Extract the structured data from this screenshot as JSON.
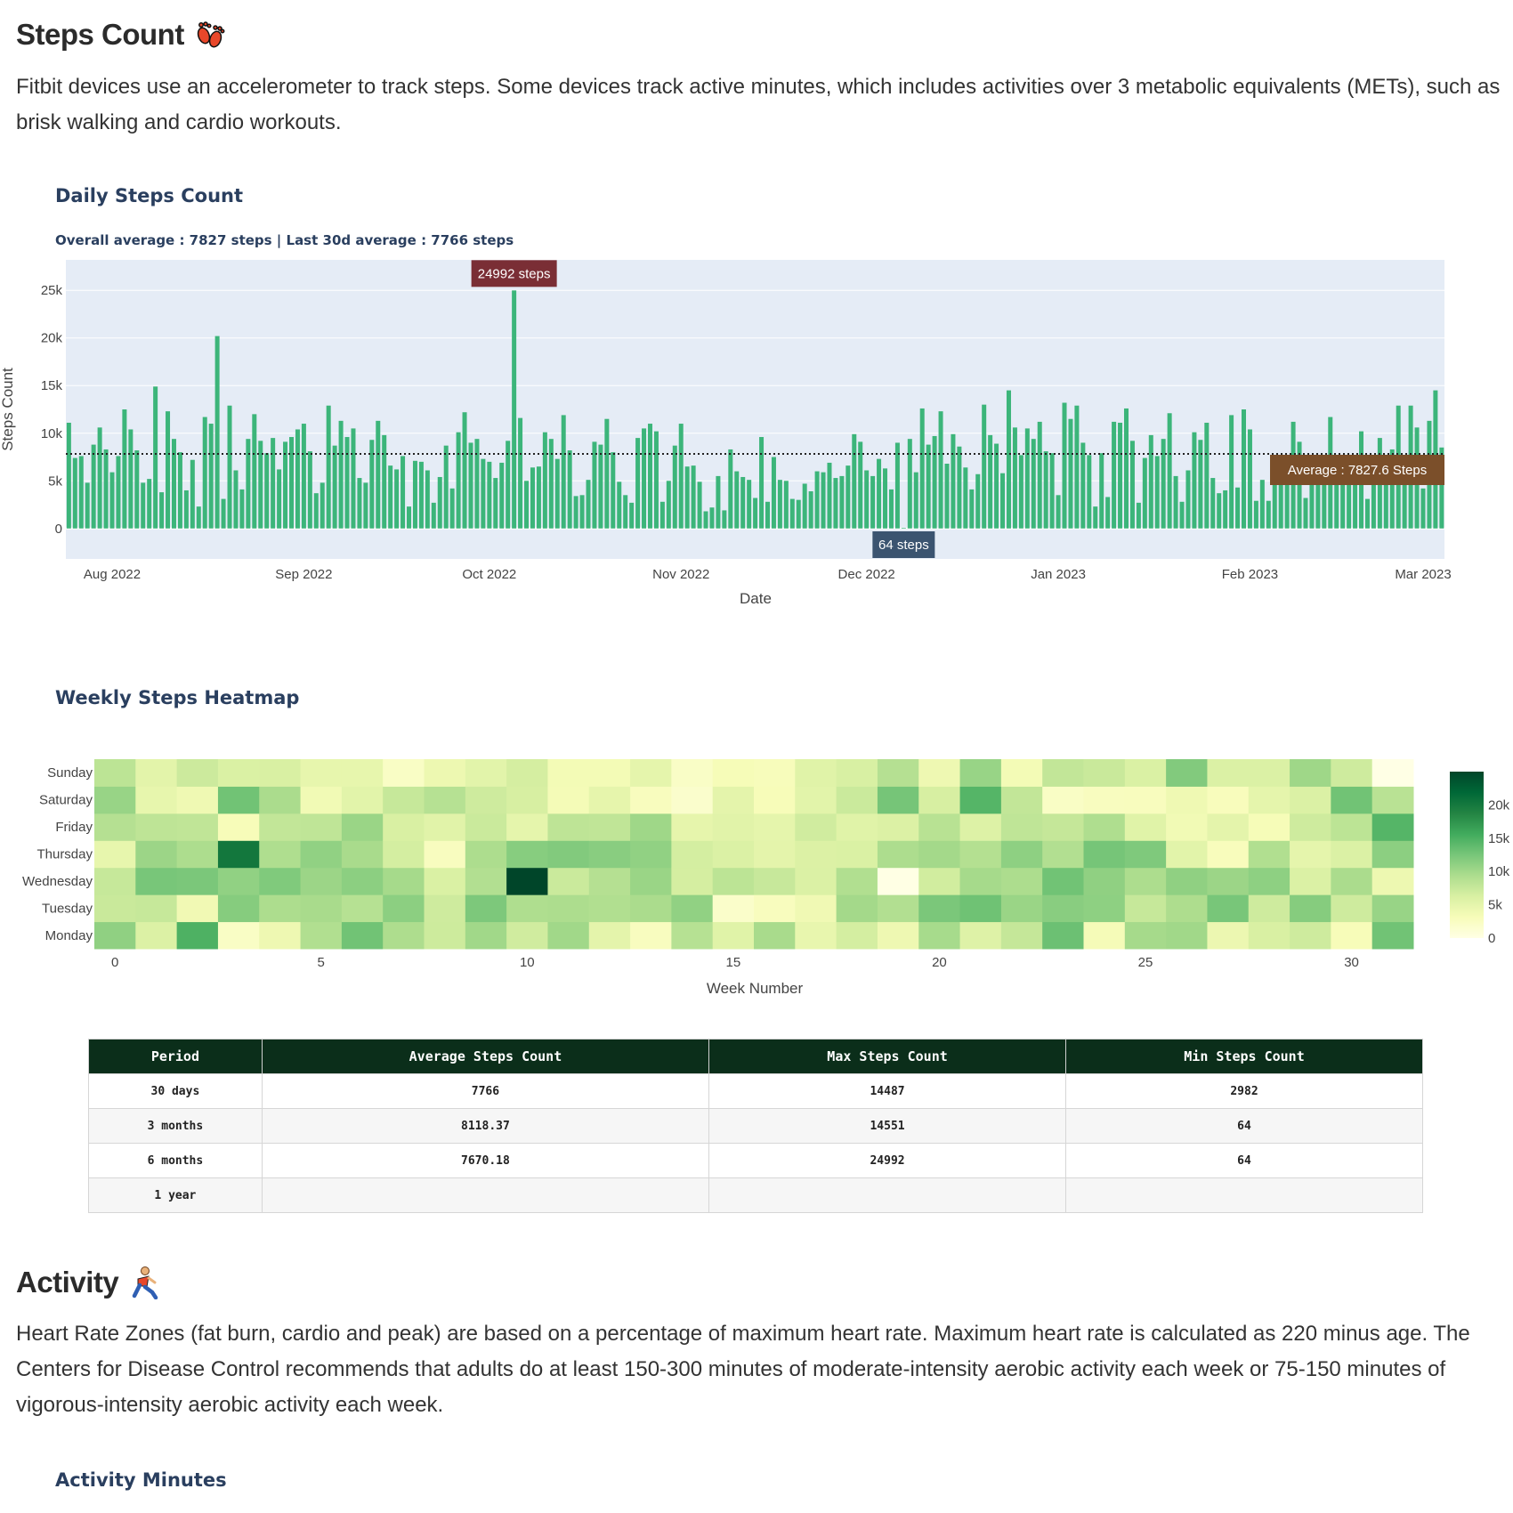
{
  "steps_section": {
    "title": "Steps Count",
    "icon": "footprints-icon",
    "description": "Fitbit devices use an accelerometer to track steps. Some devices track active minutes, which includes activities over 3 metabolic equivalents (METs), such as brisk walking and cardio workouts."
  },
  "activity_section": {
    "title": "Activity",
    "icon": "runner-icon",
    "description": "Heart Rate Zones (fat burn, cardio and peak) are based on a percentage of maximum heart rate. Maximum heart rate is calculated as 220 minus age. The Centers for Disease Control recommends that adults do at least 150-300 minutes of moderate-intensity aerobic activity each week or 75-150 minutes of vigorous-intensity aerobic activity each week.",
    "next_chart_title": "Activity Minutes"
  },
  "colors": {
    "bar": "#3cb57a",
    "plot_bg": "#e5ecf6",
    "max_label": "#7a2e35",
    "min_label": "#3b5470",
    "avg_label": "#7b4f2a",
    "table_header": "#0b2e1a"
  },
  "chart_data": [
    {
      "type": "bar",
      "title": "Daily Steps Count",
      "subtitle": "Overall average : 7827 steps | Last 30d average : 7766 steps",
      "xlabel": "Date",
      "ylabel": "Steps Count",
      "ylim": [
        -3200,
        28200
      ],
      "y_ticks": [
        0,
        5000,
        10000,
        15000,
        20000,
        25000
      ],
      "y_tick_labels": [
        "0",
        "5k",
        "10k",
        "15k",
        "20k",
        "25k"
      ],
      "x_ticks": [
        "2022-08-01",
        "2022-09-01",
        "2022-10-01",
        "2022-11-01",
        "2022-12-01",
        "2023-01-01",
        "2023-02-01",
        "2023-03-01"
      ],
      "x_tick_labels": [
        "Aug 2022",
        "Sep 2022",
        "Oct 2022",
        "Nov 2022",
        "Dec 2022",
        "Jan 2023",
        "Feb 2023",
        "Mar 2023"
      ],
      "grid": true,
      "average_line": 7827.6,
      "annotations": {
        "max": "24992 steps",
        "min": "64 steps",
        "average": "Average : 7827.6 Steps"
      },
      "x": [
        "2022-07-25",
        "2022-07-26",
        "2022-07-27",
        "2022-07-28",
        "2022-07-29",
        "2022-07-30",
        "2022-07-31",
        "2022-08-01",
        "2022-08-02",
        "2022-08-03",
        "2022-08-04",
        "2022-08-05",
        "2022-08-06",
        "2022-08-07",
        "2022-08-08",
        "2022-08-09",
        "2022-08-10",
        "2022-08-11",
        "2022-08-12",
        "2022-08-13",
        "2022-08-14",
        "2022-08-15",
        "2022-08-16",
        "2022-08-17",
        "2022-08-18",
        "2022-08-19",
        "2022-08-20",
        "2022-08-21",
        "2022-08-22",
        "2022-08-23",
        "2022-08-24",
        "2022-08-25",
        "2022-08-26",
        "2022-08-27",
        "2022-08-28",
        "2022-08-29",
        "2022-08-30",
        "2022-08-31",
        "2022-09-01",
        "2022-09-02",
        "2022-09-03",
        "2022-09-04",
        "2022-09-05",
        "2022-09-06",
        "2022-09-07",
        "2022-09-08",
        "2022-09-09",
        "2022-09-10",
        "2022-09-11",
        "2022-09-12",
        "2022-09-13",
        "2022-09-14",
        "2022-09-15",
        "2022-09-16",
        "2022-09-17",
        "2022-09-18",
        "2022-09-19",
        "2022-09-20",
        "2022-09-21",
        "2022-09-22",
        "2022-09-23",
        "2022-09-24",
        "2022-09-25",
        "2022-09-26",
        "2022-09-27",
        "2022-09-28",
        "2022-09-29",
        "2022-09-30",
        "2022-10-01",
        "2022-10-02",
        "2022-10-03",
        "2022-10-04",
        "2022-10-05",
        "2022-10-06",
        "2022-10-07",
        "2022-10-08",
        "2022-10-09",
        "2022-10-10",
        "2022-10-11",
        "2022-10-12",
        "2022-10-13",
        "2022-10-14",
        "2022-10-15",
        "2022-10-16",
        "2022-10-17",
        "2022-10-18",
        "2022-10-19",
        "2022-10-20",
        "2022-10-21",
        "2022-10-22",
        "2022-10-23",
        "2022-10-24",
        "2022-10-25",
        "2022-10-26",
        "2022-10-27",
        "2022-10-28",
        "2022-10-29",
        "2022-10-30",
        "2022-10-31",
        "2022-11-01",
        "2022-11-02",
        "2022-11-03",
        "2022-11-04",
        "2022-11-05",
        "2022-11-06",
        "2022-11-07",
        "2022-11-08",
        "2022-11-09",
        "2022-11-10",
        "2022-11-11",
        "2022-11-12",
        "2022-11-13",
        "2022-11-14",
        "2022-11-15",
        "2022-11-16",
        "2022-11-17",
        "2022-11-18",
        "2022-11-19",
        "2022-11-20",
        "2022-11-21",
        "2022-11-22",
        "2022-11-23",
        "2022-11-24",
        "2022-11-25",
        "2022-11-26",
        "2022-11-27",
        "2022-11-28",
        "2022-11-29",
        "2022-11-30",
        "2022-12-01",
        "2022-12-02",
        "2022-12-03",
        "2022-12-04",
        "2022-12-05",
        "2022-12-06",
        "2022-12-07",
        "2022-12-08",
        "2022-12-09",
        "2022-12-10",
        "2022-12-11",
        "2022-12-12",
        "2022-12-13",
        "2022-12-14",
        "2022-12-15",
        "2022-12-16",
        "2022-12-17",
        "2022-12-18",
        "2022-12-19",
        "2022-12-20",
        "2022-12-21",
        "2022-12-22",
        "2022-12-23",
        "2022-12-24",
        "2022-12-25",
        "2022-12-26",
        "2022-12-27",
        "2022-12-28",
        "2022-12-29",
        "2022-12-30",
        "2022-12-31",
        "2023-01-01",
        "2023-01-02",
        "2023-01-03",
        "2023-01-04",
        "2023-01-05",
        "2023-01-06",
        "2023-01-07",
        "2023-01-08",
        "2023-01-09",
        "2023-01-10",
        "2023-01-11",
        "2023-01-12",
        "2023-01-13",
        "2023-01-14",
        "2023-01-15",
        "2023-01-16",
        "2023-01-17",
        "2023-01-18",
        "2023-01-19",
        "2023-01-20",
        "2023-01-21",
        "2023-01-22",
        "2023-01-23",
        "2023-01-24",
        "2023-01-25",
        "2023-01-26",
        "2023-01-27",
        "2023-01-28",
        "2023-01-29",
        "2023-01-30",
        "2023-01-31",
        "2023-02-01",
        "2023-02-02",
        "2023-02-03",
        "2023-02-04",
        "2023-02-05",
        "2023-02-06",
        "2023-02-07",
        "2023-02-08",
        "2023-02-09",
        "2023-02-10",
        "2023-02-11",
        "2023-02-12",
        "2023-02-13",
        "2023-02-14",
        "2023-02-15",
        "2023-02-16",
        "2023-02-17",
        "2023-02-18",
        "2023-02-19",
        "2023-02-20",
        "2023-02-21",
        "2023-02-22",
        "2023-02-23",
        "2023-02-24",
        "2023-02-25",
        "2023-02-26",
        "2023-02-27",
        "2023-02-28",
        "2023-03-01",
        "2023-03-02",
        "2023-03-03",
        "2023-03-04"
      ],
      "y": [
        11100,
        7400,
        7600,
        4800,
        8800,
        10600,
        8300,
        5900,
        7600,
        12500,
        10400,
        8200,
        4800,
        5200,
        14900,
        3800,
        12300,
        9400,
        8000,
        4000,
        7200,
        2300,
        11700,
        11000,
        20200,
        3100,
        12900,
        6100,
        4100,
        9400,
        12000,
        9200,
        7900,
        9500,
        6200,
        9100,
        9600,
        10400,
        11000,
        8100,
        3700,
        4800,
        12900,
        8700,
        11300,
        9600,
        10500,
        5300,
        4800,
        9300,
        11300,
        9800,
        6600,
        6200,
        7600,
        2300,
        7100,
        7000,
        6100,
        2700,
        5400,
        8700,
        4200,
        10100,
        12200,
        9000,
        9400,
        7300,
        7000,
        5300,
        6900,
        9200,
        24992,
        11600,
        5000,
        6400,
        6500,
        10100,
        9400,
        7300,
        11900,
        8200,
        3400,
        3500,
        5100,
        9100,
        8800,
        11500,
        8000,
        4900,
        3500,
        2700,
        9500,
        10500,
        11000,
        10200,
        2800,
        5000,
        8700,
        11000,
        6500,
        6600,
        4900,
        1800,
        2200,
        5500,
        1900,
        8300,
        6000,
        5400,
        5100,
        3200,
        9600,
        2800,
        7500,
        5100,
        5000,
        3100,
        3000,
        4700,
        3900,
        6000,
        5900,
        6900,
        5300,
        5500,
        6600,
        9900,
        9100,
        6100,
        5500,
        7300,
        6300,
        4100,
        9000,
        64,
        9400,
        5900,
        12600,
        8800,
        9700,
        12300,
        6800,
        9900,
        8600,
        6400,
        4100,
        5700,
        13000,
        9800,
        8900,
        5800,
        14500,
        10600,
        7700,
        10500,
        9400,
        11200,
        8100,
        7900,
        3500,
        13200,
        11500,
        12900,
        9000,
        7700,
        2300,
        7900,
        3300,
        11200,
        11100,
        12600,
        9200,
        2700,
        7400,
        9800,
        7600,
        9400,
        12100,
        5500,
        2800,
        6100,
        10100,
        9300,
        11100,
        5300,
        3700,
        4000,
        11900,
        4300,
        12500,
        10400,
        2900,
        5100,
        2900,
        6000,
        6200,
        7000,
        11200,
        9100,
        3200,
        5000,
        6000,
        7000,
        11700,
        6000,
        5000,
        7000,
        6000,
        10200,
        3100,
        7000,
        9500,
        6000,
        8300,
        12900,
        7000,
        12900,
        10600,
        4200,
        11300,
        14500,
        8500
      ]
    },
    {
      "type": "heatmap",
      "title": "Weekly Steps Heatmap",
      "xlabel": "Week Number",
      "ylabel": "",
      "y_categories": [
        "Monday",
        "Tuesday",
        "Wednesday",
        "Thursday",
        "Friday",
        "Saturday",
        "Sunday"
      ],
      "weeks": 32,
      "x_ticks": [
        0,
        5,
        10,
        15,
        20,
        25,
        30
      ],
      "x_tick_labels": [
        "0",
        "5",
        "10",
        "15",
        "20",
        "25",
        "30"
      ],
      "colorscale": [
        "#ffffe5",
        "#f7fcb9",
        "#d9f0a3",
        "#addd8e",
        "#78c679",
        "#41ab5d",
        "#238443",
        "#006837",
        "#004529"
      ],
      "zmin": 0,
      "zmax": 24992,
      "colorbar_ticks": [
        0,
        5000,
        10000,
        15000,
        20000
      ],
      "colorbar_tick_labels": [
        "0",
        "5k",
        "10k",
        "15k",
        "20k"
      ],
      "z_from": "daily steps of Daily Steps Count, week-major, Monday first"
    }
  ],
  "stats_table": {
    "columns": [
      "Period",
      "Average Steps Count",
      "Max Steps Count",
      "Min Steps Count"
    ],
    "rows": [
      [
        "30 days",
        "7766",
        "14487",
        "2982"
      ],
      [
        "3 months",
        "8118.37",
        "14551",
        "64"
      ],
      [
        "6 months",
        "7670.18",
        "24992",
        "64"
      ],
      [
        "1 year",
        "",
        "",
        ""
      ]
    ]
  }
}
